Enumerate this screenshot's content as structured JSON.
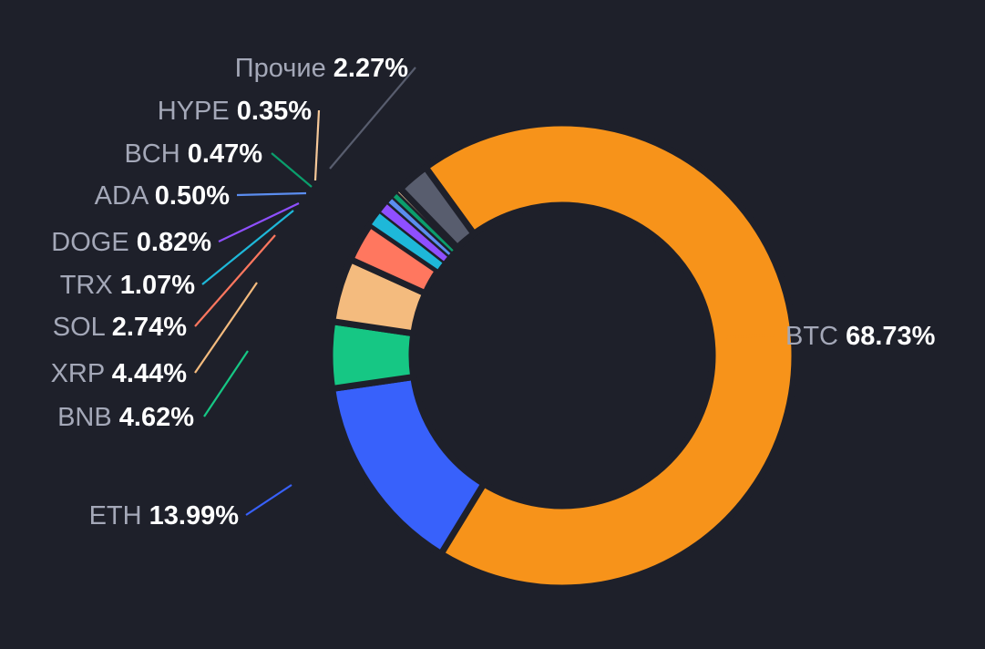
{
  "chart_data": {
    "type": "pie",
    "variant": "donut",
    "title": "",
    "legend": "none",
    "slices": [
      {
        "label": "BTC",
        "value": 68.73,
        "value_text": "68.73%",
        "color": "#f7931a"
      },
      {
        "label": "ETH",
        "value": 13.99,
        "value_text": "13.99%",
        "color": "#3861fb"
      },
      {
        "label": "BNB",
        "value": 4.62,
        "value_text": "4.62%",
        "color": "#16c784"
      },
      {
        "label": "XRP",
        "value": 4.44,
        "value_text": "4.44%",
        "color": "#f4bb7e"
      },
      {
        "label": "SOL",
        "value": 2.74,
        "value_text": "2.74%",
        "color": "#ff775f"
      },
      {
        "label": "TRX",
        "value": 1.07,
        "value_text": "1.07%",
        "color": "#1eb8d9"
      },
      {
        "label": "DOGE",
        "value": 0.82,
        "value_text": "0.82%",
        "color": "#8f4fff"
      },
      {
        "label": "ADA",
        "value": 0.5,
        "value_text": "0.50%",
        "color": "#5b8def"
      },
      {
        "label": "BCH",
        "value": 0.47,
        "value_text": "0.47%",
        "color": "#0a9e6c"
      },
      {
        "label": "HYPE",
        "value": 0.35,
        "value_text": "0.35%",
        "color": "#f6c899"
      },
      {
        "label": "Прочие",
        "value": 2.27,
        "value_text": "2.27%",
        "color": "#585d6e"
      }
    ]
  }
}
